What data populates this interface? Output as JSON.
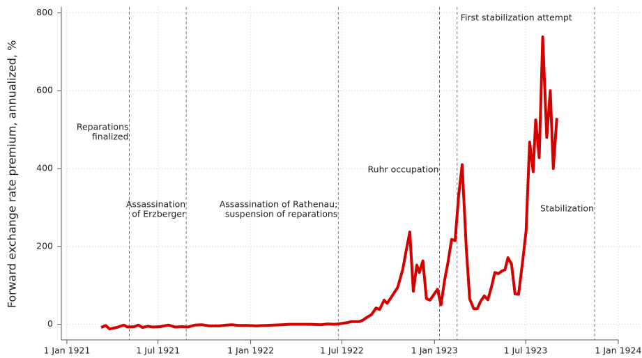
{
  "chart_data": {
    "type": "line",
    "y_label": "Forward exchange rate premium, annualized, %",
    "color": "#d40000",
    "grid": true,
    "xlim": [
      "1920-12-21",
      "1924-02-13"
    ],
    "xticks": [
      {
        "value": "1921-01-01",
        "label": "1 Jan 1921"
      },
      {
        "value": "1921-07-01",
        "label": "1 Jul 1921"
      },
      {
        "value": "1922-01-01",
        "label": "1 Jan 1922"
      },
      {
        "value": "1922-07-01",
        "label": "1 Jul 1922"
      },
      {
        "value": "1923-01-01",
        "label": "1 Jan 1923"
      },
      {
        "value": "1923-07-01",
        "label": "1 Jul 1923"
      },
      {
        "value": "1924-01-01",
        "label": "1 Jan 1924"
      }
    ],
    "ylim": [
      -40,
      815
    ],
    "yticks": [
      0,
      200,
      400,
      600,
      800
    ],
    "x": [
      "1921-03-10",
      "1921-03-19",
      "1921-03-27",
      "1921-04-10",
      "1921-04-24",
      "1921-05-01",
      "1921-05-15",
      "1921-05-23",
      "1921-05-31",
      "1921-06-11",
      "1921-06-21",
      "1921-07-05",
      "1921-07-22",
      "1921-08-04",
      "1921-08-18",
      "1921-08-29",
      "1921-09-12",
      "1921-09-26",
      "1921-10-10",
      "1921-10-31",
      "1921-11-14",
      "1921-11-25",
      "1921-12-09",
      "1921-12-25",
      "1922-01-12",
      "1922-01-29",
      "1922-02-15",
      "1922-03-05",
      "1922-03-19",
      "1922-04-09",
      "1922-04-30",
      "1922-05-21",
      "1922-06-03",
      "1922-06-17",
      "1922-06-30",
      "1922-07-10",
      "1922-07-21",
      "1922-08-04",
      "1922-08-11",
      "1922-08-20",
      "1922-08-29",
      "1922-09-07",
      "1922-09-14",
      "1922-09-23",
      "1922-09-29",
      "1922-10-09",
      "1922-10-20",
      "1922-10-30",
      "1922-11-06",
      "1922-11-13",
      "1922-11-20",
      "1922-11-27",
      "1922-12-02",
      "1922-12-09",
      "1922-12-16",
      "1922-12-23",
      "1922-12-30",
      "1923-01-07",
      "1923-01-14",
      "1923-01-21",
      "1923-01-28",
      "1923-02-04",
      "1923-02-11",
      "1923-02-18",
      "1923-02-25",
      "1923-03-05",
      "1923-03-12",
      "1923-03-20",
      "1923-03-27",
      "1923-04-03",
      "1923-04-10",
      "1923-04-17",
      "1923-04-24",
      "1923-05-01",
      "1923-05-08",
      "1923-05-15",
      "1923-05-21",
      "1923-05-27",
      "1923-06-03",
      "1923-06-10",
      "1923-06-17",
      "1923-06-25",
      "1923-07-02",
      "1923-07-09",
      "1923-07-16",
      "1923-07-21",
      "1923-07-28",
      "1923-08-04",
      "1923-08-12",
      "1923-08-19",
      "1923-08-25",
      "1923-09-01"
    ],
    "values": [
      -8,
      -3,
      -12,
      -8,
      -2,
      -7,
      -6,
      -2,
      -8,
      -5,
      -7,
      -6,
      -2,
      -7,
      -6,
      -7,
      -2,
      -1,
      -4,
      -4,
      -2,
      -1,
      -3,
      -3,
      -4,
      -3,
      -2,
      -1,
      0,
      0,
      0,
      -1,
      1,
      0,
      2,
      4,
      7,
      7,
      10,
      18,
      25,
      42,
      38,
      62,
      54,
      73,
      95,
      141,
      190,
      237,
      85,
      152,
      133,
      163,
      66,
      62,
      75,
      90,
      50,
      112,
      160,
      218,
      215,
      330,
      410,
      200,
      65,
      40,
      40,
      60,
      73,
      63,
      95,
      133,
      130,
      137,
      140,
      171,
      155,
      78,
      77,
      160,
      240,
      468,
      392,
      525,
      428,
      738,
      480,
      600,
      400,
      530
    ],
    "annotations": [
      {
        "x": "1921-05-05",
        "text": [
          "Reparations",
          "finalized"
        ]
      },
      {
        "x": "1921-08-26",
        "text": [
          "Assassination",
          "of Erzberger"
        ]
      },
      {
        "x": "1922-06-24",
        "text": [
          "Assassination of Rathenau;",
          "suspension of reparations"
        ]
      },
      {
        "x": "1923-01-11",
        "text": [
          "Ruhr occupation"
        ]
      },
      {
        "x": "1923-02-15",
        "text": [
          "First stabilization attempt"
        ]
      },
      {
        "x": "1923-11-15",
        "text": [
          "Stabilization"
        ]
      }
    ]
  }
}
